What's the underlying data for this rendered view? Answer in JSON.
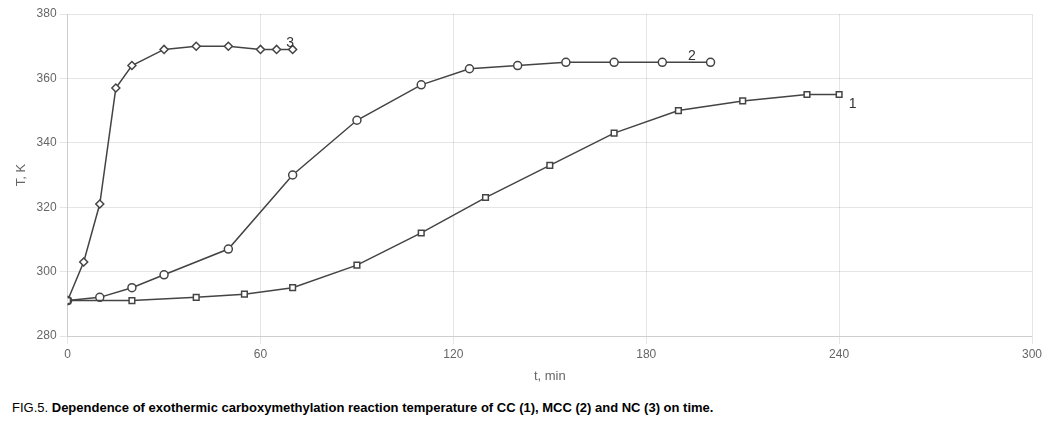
{
  "chart_data": {
    "type": "line",
    "xlabel": "t, min",
    "ylabel": "T, K",
    "caption_prefix": "FIG.5.",
    "caption": "Dependence of exothermic carboxymethylation reaction temperature of CC (1), MCC (2) and NC (3) on time.",
    "xlim": [
      0,
      300
    ],
    "ylim": [
      280,
      380
    ],
    "xticks": [
      0,
      60,
      120,
      180,
      240,
      300
    ],
    "yticks": [
      280,
      300,
      320,
      340,
      360,
      380
    ],
    "grid": true,
    "series": [
      {
        "color": "#444444",
        "marker": "square",
        "x": [
          0,
          20,
          40,
          55,
          70,
          90,
          110,
          130,
          150,
          170,
          190,
          210,
          230,
          240
        ],
        "values": [
          291,
          291,
          292,
          293,
          295,
          302,
          312,
          323,
          333,
          343,
          350,
          353,
          355,
          355
        ]
      },
      {
        "color": "#444444",
        "marker": "circle",
        "x": [
          0,
          10,
          20,
          30,
          50,
          70,
          90,
          110,
          125,
          140,
          155,
          170,
          185,
          200
        ],
        "values": [
          291,
          292,
          295,
          299,
          307,
          330,
          347,
          358,
          363,
          364,
          365,
          365,
          365,
          365
        ]
      },
      {
        "color": "#444444",
        "marker": "diamond",
        "x": [
          0,
          5,
          10,
          15,
          20,
          30,
          40,
          50,
          60,
          65,
          70
        ],
        "values": [
          291,
          303,
          321,
          357,
          364,
          369,
          370,
          370,
          369,
          369,
          369
        ]
      }
    ],
    "annotations": [
      {
        "text": "1",
        "x": 243,
        "y": 352
      },
      {
        "text": "2",
        "x": 193,
        "y": 367
      },
      {
        "text": "3",
        "x": 68,
        "y": 371
      }
    ]
  }
}
